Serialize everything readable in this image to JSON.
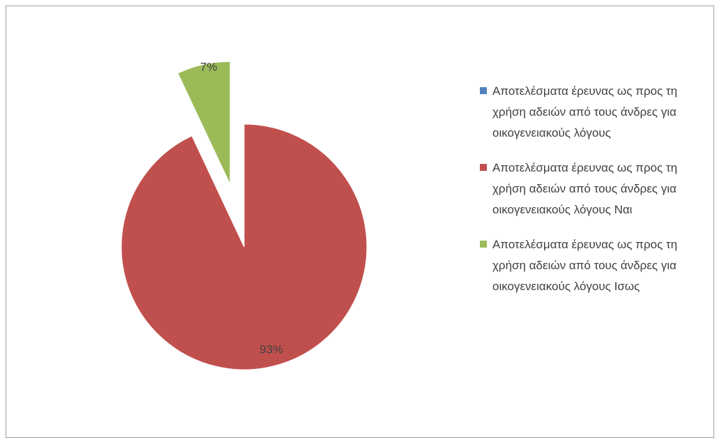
{
  "chart_data": {
    "type": "pie",
    "series": [
      {
        "name": "Αποτελέσματα έρευνας ως προς τη χρήση αδειών από τους άνδρες για οικογενειακούς λόγους",
        "value": 0,
        "color": "#4f81bd",
        "label": ""
      },
      {
        "name": "Αποτελέσματα έρευνας ως προς τη χρήση αδειών από τους άνδρες για οικογενειακούς λόγους Ναι",
        "value": 93,
        "color": "#c0504d",
        "label": "93%"
      },
      {
        "name": "Αποτελέσματα έρευνας ως προς τη χρήση αδειών από τους άνδρες για οικογενειακούς λόγους Ισως",
        "value": 7,
        "color": "#9bbb59",
        "label": "7%"
      }
    ],
    "legend_position": "right",
    "exploded_slice": "Ισως",
    "start_angle": "top",
    "grid": false
  }
}
